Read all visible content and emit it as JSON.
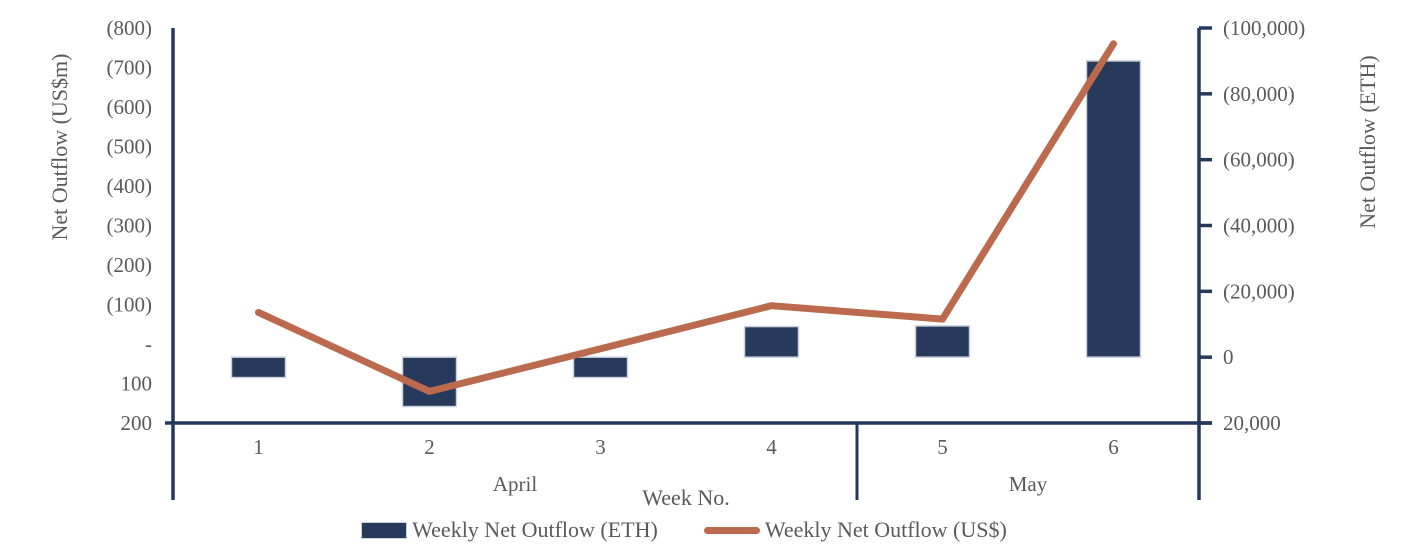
{
  "chart_data": {
    "type": "combo",
    "x_axis_title": "Week No.",
    "categories": [
      "1",
      "2",
      "3",
      "4",
      "5",
      "6"
    ],
    "category_groups": [
      {
        "label": "April",
        "weeks": 4
      },
      {
        "label": "May",
        "weeks": 2
      }
    ],
    "series": [
      {
        "name": "Weekly Net Outflow (ETH)",
        "type": "bar",
        "axis": "right",
        "values": [
          6200,
          15000,
          6200,
          -9300,
          -9500,
          -90000
        ]
      },
      {
        "name": "Weekly Net Outflow (US$)",
        "type": "line",
        "axis": "left",
        "values": [
          -80,
          120,
          12,
          -97,
          -63,
          -760
        ]
      }
    ],
    "left_axis": {
      "title": "Net Outflow (US$m)",
      "min": -800,
      "max": 200,
      "step": 100,
      "inverted": true,
      "tick_labels": [
        "(800)",
        "(700)",
        "(600)",
        "(500)",
        "(400)",
        "(300)",
        "(200)",
        "(100)",
        "-",
        "100",
        "200"
      ]
    },
    "right_axis": {
      "title": "Net Outflow (ETH)",
      "min": -100000,
      "max": 20000,
      "step": 20000,
      "inverted": true,
      "tick_labels": [
        "(100,000)",
        "(80,000)",
        "(60,000)",
        "(40,000)",
        "(20,000)",
        "0",
        "20,000"
      ]
    },
    "grid": false,
    "legend_position": "bottom",
    "legend": [
      "Weekly Net Outflow (ETH)",
      "Weekly Net Outflow (US$)"
    ]
  },
  "colors": {
    "bar": "#273A5C",
    "bar_border": "#CBD1DE",
    "line": "#BB6A4E",
    "axis": "#24385B",
    "text": "#5A5A5A",
    "background": "#FFFFFF"
  }
}
